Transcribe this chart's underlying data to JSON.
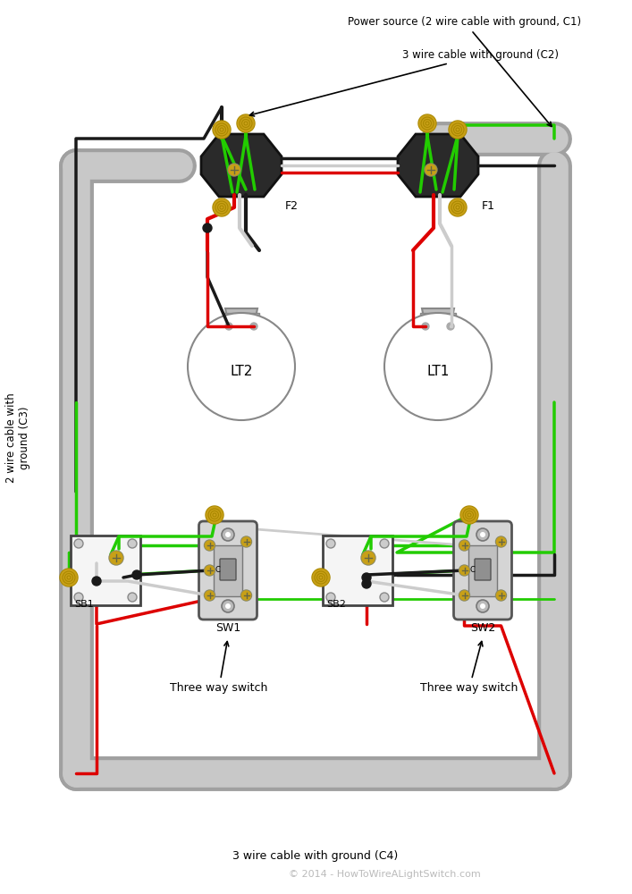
{
  "bg_color": "#ffffff",
  "wire_colors": {
    "black": "#1a1a1a",
    "white": "#cccccc",
    "red": "#dd0000",
    "green": "#22cc00",
    "bare": "#c8a017"
  },
  "labels": {
    "power_source": "Power source (2 wire cable with ground, C1)",
    "c2": "3 wire cable with ground (C2)",
    "c3": "2 wire cable with\nground (C3)",
    "c4": "3 wire cable with ground (C4)",
    "three_way_switch": "Three way switch",
    "copyright": "© 2014 - HowToWireALightSwitch.com"
  },
  "conduit_color": "#c8c8c8",
  "conduit_edge": "#a0a0a0",
  "fixture_box_fill": "#1a1a1a",
  "fixture_box_edge": "#111111"
}
